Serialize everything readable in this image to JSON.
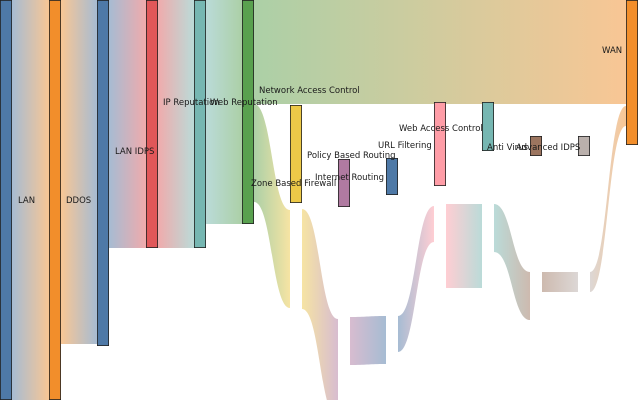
{
  "chart_data": {
    "type": "sankey",
    "nodes": [
      {
        "id": "lan",
        "label": "LAN",
        "color": "#4e79a7"
      },
      {
        "id": "ddos",
        "label": "DDOS",
        "color": "#f28e2b"
      },
      {
        "id": "lan-idps",
        "label": "LAN IDPS",
        "color": "#4e79a7"
      },
      {
        "id": "ip-reputation",
        "label": "IP Reputation",
        "color": "#e15759"
      },
      {
        "id": "web-reputation",
        "label": "Web Reputation",
        "color": "#76b7b2"
      },
      {
        "id": "network-access-control",
        "label": "Network Access Control",
        "color": "#59a14f"
      },
      {
        "id": "zone-based-firewall",
        "label": "Zone Based Firewall",
        "color": "#edc948"
      },
      {
        "id": "policy-based-routing",
        "label": "Policy Based Routing",
        "color": "#b07aa1"
      },
      {
        "id": "internet-routing",
        "label": "Internet Routing",
        "color": "#4e79a7"
      },
      {
        "id": "url-filtering",
        "label": "URL Filtering",
        "color": "#ff9da7"
      },
      {
        "id": "web-access-control",
        "label": "Web Access Control",
        "color": "#76b7b2"
      },
      {
        "id": "anti-virus",
        "label": "Anti Virus",
        "color": "#9c755f"
      },
      {
        "id": "advanced-idps",
        "label": "Advanced IDPS",
        "color": "#bab0ac"
      },
      {
        "id": "wan",
        "label": "WAN",
        "color": "#f28e2b"
      }
    ],
    "links": [
      {
        "source": "lan",
        "target": "ddos",
        "value": 100
      },
      {
        "source": "ddos",
        "target": "lan-idps",
        "value": 86
      },
      {
        "source": "lan-idps",
        "target": "ip-reputation",
        "value": 62
      },
      {
        "source": "ip-reputation",
        "target": "web-reputation",
        "value": 62
      },
      {
        "source": "web-reputation",
        "target": "network-access-control",
        "value": 56
      },
      {
        "source": "network-access-control",
        "target": "wan",
        "value": 26
      },
      {
        "source": "network-access-control",
        "target": "zone-based-firewall",
        "value": 24.5
      },
      {
        "source": "zone-based-firewall",
        "target": "policy-based-routing",
        "value": 25
      },
      {
        "source": "policy-based-routing",
        "target": "internet-routing",
        "value": 12
      },
      {
        "source": "internet-routing",
        "target": "url-filtering",
        "value": 9
      },
      {
        "source": "url-filtering",
        "target": "web-access-control",
        "value": 21
      },
      {
        "source": "web-access-control",
        "target": "anti-virus",
        "value": 12
      },
      {
        "source": "anti-virus",
        "target": "advanced-idps",
        "value": 5
      },
      {
        "source": "advanced-idps",
        "target": "wan",
        "value": 5
      }
    ]
  }
}
